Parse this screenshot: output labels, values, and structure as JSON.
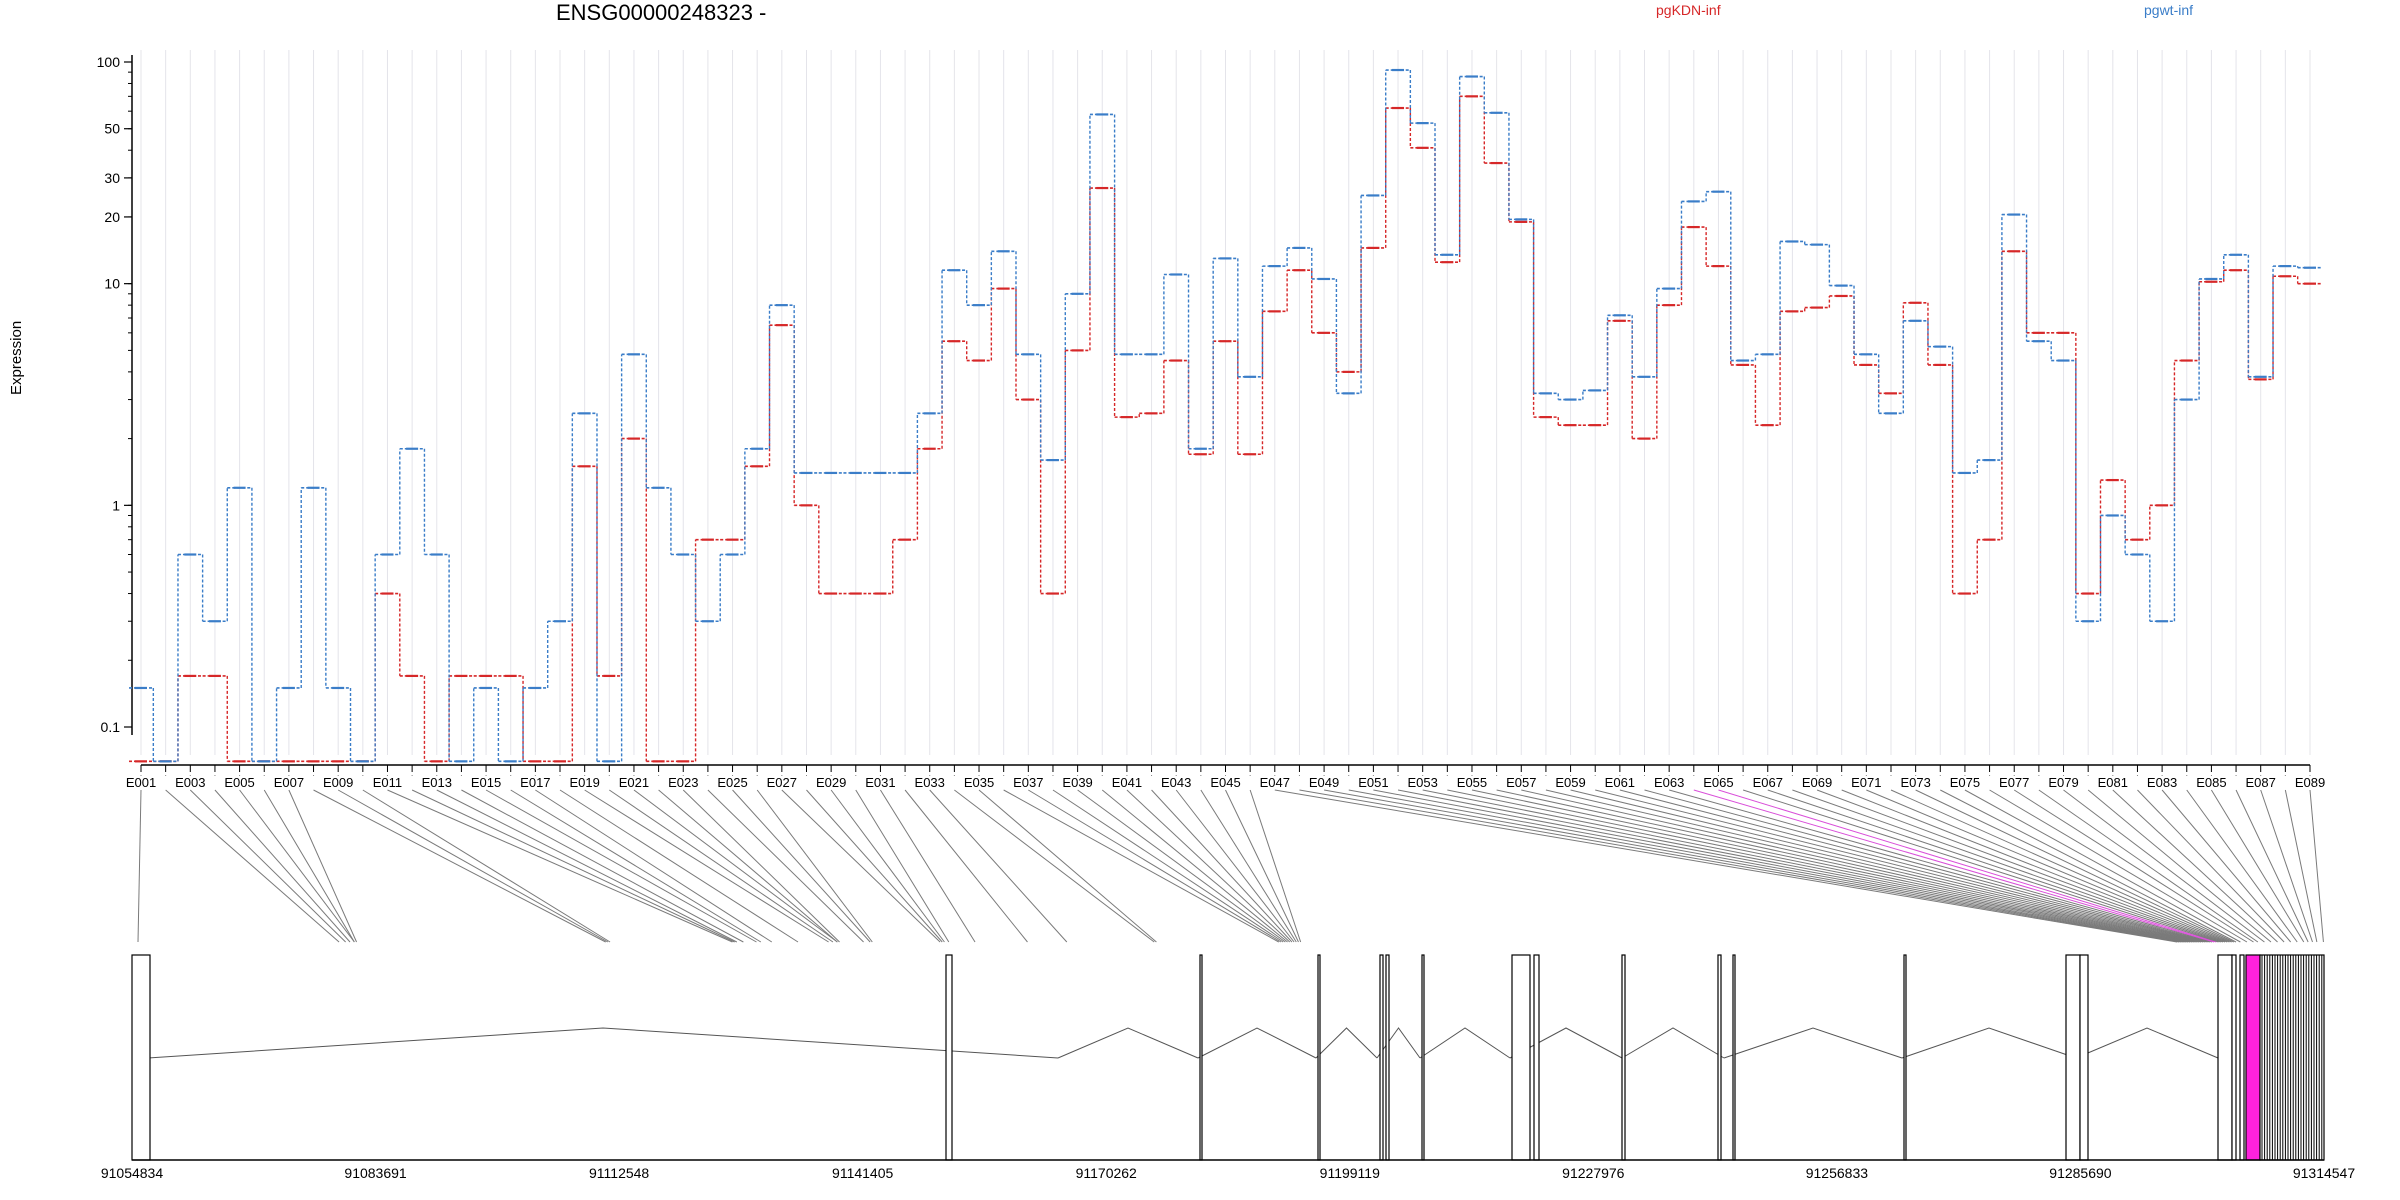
{
  "chart_data": {
    "type": "line",
    "title": "ENSG00000248323 -",
    "ylabel": "Expression",
    "yscale": "log",
    "yticks": [
      0.1,
      1,
      10,
      20,
      30,
      50,
      100
    ],
    "yticklabels": [
      "0.1",
      "1",
      "10",
      "20",
      "30",
      "50",
      "100"
    ],
    "categories": [
      "E001",
      "E002",
      "E003",
      "E004",
      "E005",
      "E006",
      "E007",
      "E008",
      "E009",
      "E010",
      "E011",
      "E012",
      "E013",
      "E014",
      "E015",
      "E016",
      "E017",
      "E018",
      "E019",
      "E020",
      "E021",
      "E022",
      "E023",
      "E024",
      "E025",
      "E026",
      "E027",
      "E028",
      "E029",
      "E030",
      "E031",
      "E032",
      "E033",
      "E034",
      "E035",
      "E036",
      "E037",
      "E038",
      "E039",
      "E040",
      "E041",
      "E042",
      "E043",
      "E044",
      "E045",
      "E046",
      "E047",
      "E048",
      "E049",
      "E050",
      "E051",
      "E052",
      "E053",
      "E054",
      "E055",
      "E056",
      "E057",
      "E058",
      "E059",
      "E060",
      "E061",
      "E062",
      "E063",
      "E064",
      "E065",
      "E066",
      "E067",
      "E068",
      "E069",
      "E070",
      "E071",
      "E072",
      "E073",
      "E074",
      "E075",
      "E076",
      "E077",
      "E078",
      "E079",
      "E080",
      "E081",
      "E082",
      "E083",
      "E084",
      "E085",
      "E086",
      "E087",
      "E088",
      "E089"
    ],
    "series": [
      {
        "name": "pgKDN-inf",
        "color": "#d62728",
        "values": [
          0.07,
          0.07,
          0.17,
          0.17,
          0.07,
          0.07,
          0.07,
          0.07,
          0.07,
          0.07,
          0.4,
          0.17,
          0.07,
          0.17,
          0.17,
          0.17,
          0.07,
          0.07,
          1.5,
          0.17,
          2.0,
          0.07,
          0.07,
          0.7,
          0.7,
          1.5,
          6.5,
          1.0,
          0.4,
          0.4,
          0.4,
          0.7,
          1.8,
          5.5,
          4.5,
          9.5,
          3.0,
          0.4,
          5.0,
          27,
          2.5,
          2.6,
          4.5,
          1.7,
          5.5,
          1.7,
          7.5,
          11.5,
          6.0,
          4.0,
          14.5,
          62,
          41,
          12.5,
          70,
          35,
          19,
          2.5,
          2.3,
          2.3,
          6.8,
          2.0,
          8.0,
          18,
          12,
          4.3,
          2.3,
          7.5,
          7.8,
          8.8,
          4.3,
          3.2,
          8.2,
          4.3,
          0.4,
          0.7,
          14,
          6.0,
          6.0,
          0.4,
          1.3,
          0.7,
          1.0,
          4.5,
          10.2,
          11.5,
          3.7,
          10.8,
          10.0
        ]
      },
      {
        "name": "pgwt-inf",
        "color": "#3a7dc8",
        "values": [
          0.15,
          0.07,
          0.6,
          0.3,
          1.2,
          0.07,
          0.15,
          1.2,
          0.15,
          0.07,
          0.6,
          1.8,
          0.6,
          0.07,
          0.15,
          0.07,
          0.15,
          0.3,
          2.6,
          0.07,
          4.8,
          1.2,
          0.6,
          0.3,
          0.6,
          1.8,
          8.0,
          1.4,
          1.4,
          1.4,
          1.4,
          1.4,
          2.6,
          11.5,
          8.0,
          14,
          4.8,
          1.6,
          9.0,
          58,
          4.8,
          4.8,
          11,
          1.8,
          13,
          3.8,
          12,
          14.5,
          10.5,
          3.2,
          25,
          92,
          53,
          13.5,
          86,
          59,
          19.5,
          3.2,
          3.0,
          3.3,
          7.2,
          3.8,
          9.5,
          23.5,
          26,
          4.5,
          4.8,
          15.5,
          15.0,
          9.8,
          4.8,
          2.6,
          6.8,
          5.2,
          1.4,
          1.6,
          20.5,
          5.5,
          4.5,
          0.3,
          0.9,
          0.6,
          0.3,
          3.0,
          10.5,
          13.5,
          3.8,
          12,
          11.8
        ]
      }
    ],
    "genomic_ticks": [
      "91054834",
      "91083691",
      "91112548",
      "91141405",
      "91170262",
      "91199119",
      "91227976",
      "91256833",
      "91285690",
      "91314547"
    ],
    "genomic_range": [
      91054834,
      91314547
    ]
  }
}
